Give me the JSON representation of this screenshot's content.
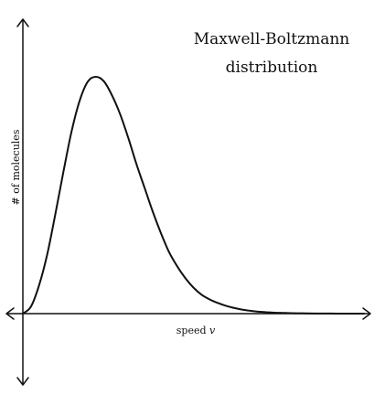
{
  "chart_data": {
    "type": "line",
    "title_lines": [
      "Maxwell-Boltzmann",
      "distribution"
    ],
    "xlabel_prefix": "speed",
    "xlabel_var": "v",
    "ylabel": "# of molecules",
    "xlim": [
      0,
      4.2
    ],
    "ylim": [
      0,
      1
    ],
    "grid": false,
    "legend": "none",
    "series": [
      {
        "x": [
          0,
          0.1,
          0.2,
          0.3,
          0.4,
          0.5,
          0.6,
          0.7,
          0.8,
          0.9,
          1.0,
          1.1,
          1.2,
          1.3,
          1.4,
          1.5,
          1.6,
          1.7,
          1.8,
          1.9,
          2.0,
          2.1,
          2.2,
          2.3,
          2.4,
          2.5,
          2.6,
          2.7,
          2.8,
          2.9,
          3.0,
          3.1,
          3.2,
          3.3,
          3.4,
          3.5,
          3.6,
          3.7,
          3.8,
          3.9,
          4.0,
          4.1,
          4.2
        ],
        "y": [
          0,
          0.03,
          0.12,
          0.25,
          0.42,
          0.6,
          0.77,
          0.9,
          0.98,
          1.0,
          0.98,
          0.92,
          0.84,
          0.74,
          0.63,
          0.53,
          0.43,
          0.34,
          0.26,
          0.2,
          0.15,
          0.11,
          0.08,
          0.06,
          0.045,
          0.033,
          0.024,
          0.017,
          0.012,
          0.008,
          0.006,
          0.004,
          0.003,
          0.002,
          0.0015,
          0.001,
          0.0007,
          0.0005,
          0.0003,
          0.0002,
          0.0001,
          5e-05,
          0
        ]
      }
    ]
  }
}
